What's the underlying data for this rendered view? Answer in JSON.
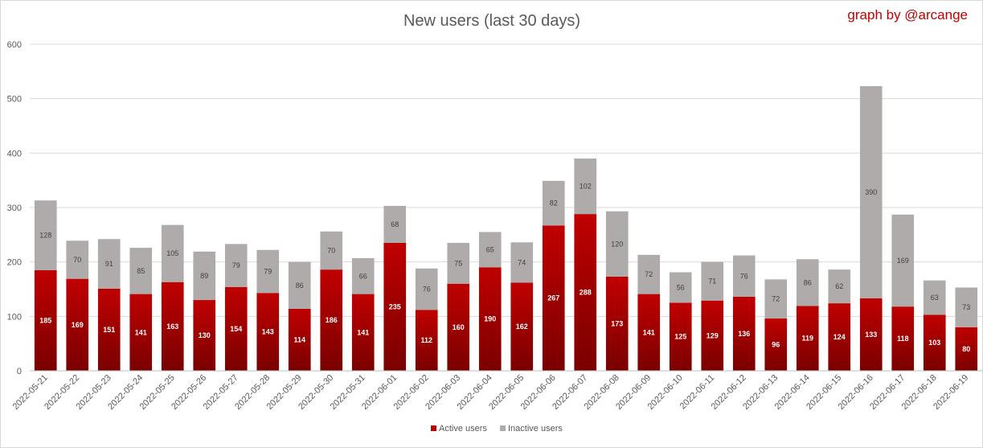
{
  "chart_data": {
    "type": "bar",
    "stacked": true,
    "title": "New users (last 30 days)",
    "credit": "graph by @arcange",
    "categories": [
      "2022-05-21",
      "2022-05-22",
      "2022-05-23",
      "2022-05-24",
      "2022-05-25",
      "2022-05-26",
      "2022-05-27",
      "2022-05-28",
      "2022-05-29",
      "2022-05-30",
      "2022-05-31",
      "2022-06-01",
      "2022-06-02",
      "2022-06-03",
      "2022-06-04",
      "2022-06-05",
      "2022-06-06",
      "2022-06-07",
      "2022-06-08",
      "2022-06-09",
      "2022-06-10",
      "2022-06-11",
      "2022-06-12",
      "2022-06-13",
      "2022-06-14",
      "2022-06-15",
      "2022-06-16",
      "2022-06-17",
      "2022-06-18",
      "2022-06-19"
    ],
    "series": [
      {
        "name": "Active users",
        "color": "#c00000",
        "values": [
          185,
          169,
          151,
          141,
          163,
          130,
          154,
          143,
          114,
          186,
          141,
          235,
          112,
          160,
          190,
          162,
          267,
          288,
          173,
          141,
          125,
          129,
          136,
          96,
          119,
          124,
          133,
          118,
          103,
          80
        ]
      },
      {
        "name": "Inactive users",
        "color": "#afabab",
        "values": [
          128,
          70,
          91,
          85,
          105,
          89,
          79,
          79,
          86,
          70,
          66,
          68,
          76,
          75,
          65,
          74,
          82,
          102,
          120,
          72,
          56,
          71,
          76,
          72,
          86,
          62,
          390,
          169,
          63,
          73
        ]
      }
    ],
    "ylim": [
      0,
      600
    ],
    "yticks": [
      0,
      100,
      200,
      300,
      400,
      500,
      600
    ],
    "xlabel": "",
    "ylabel": "",
    "grid": true,
    "legend_position": "bottom"
  }
}
